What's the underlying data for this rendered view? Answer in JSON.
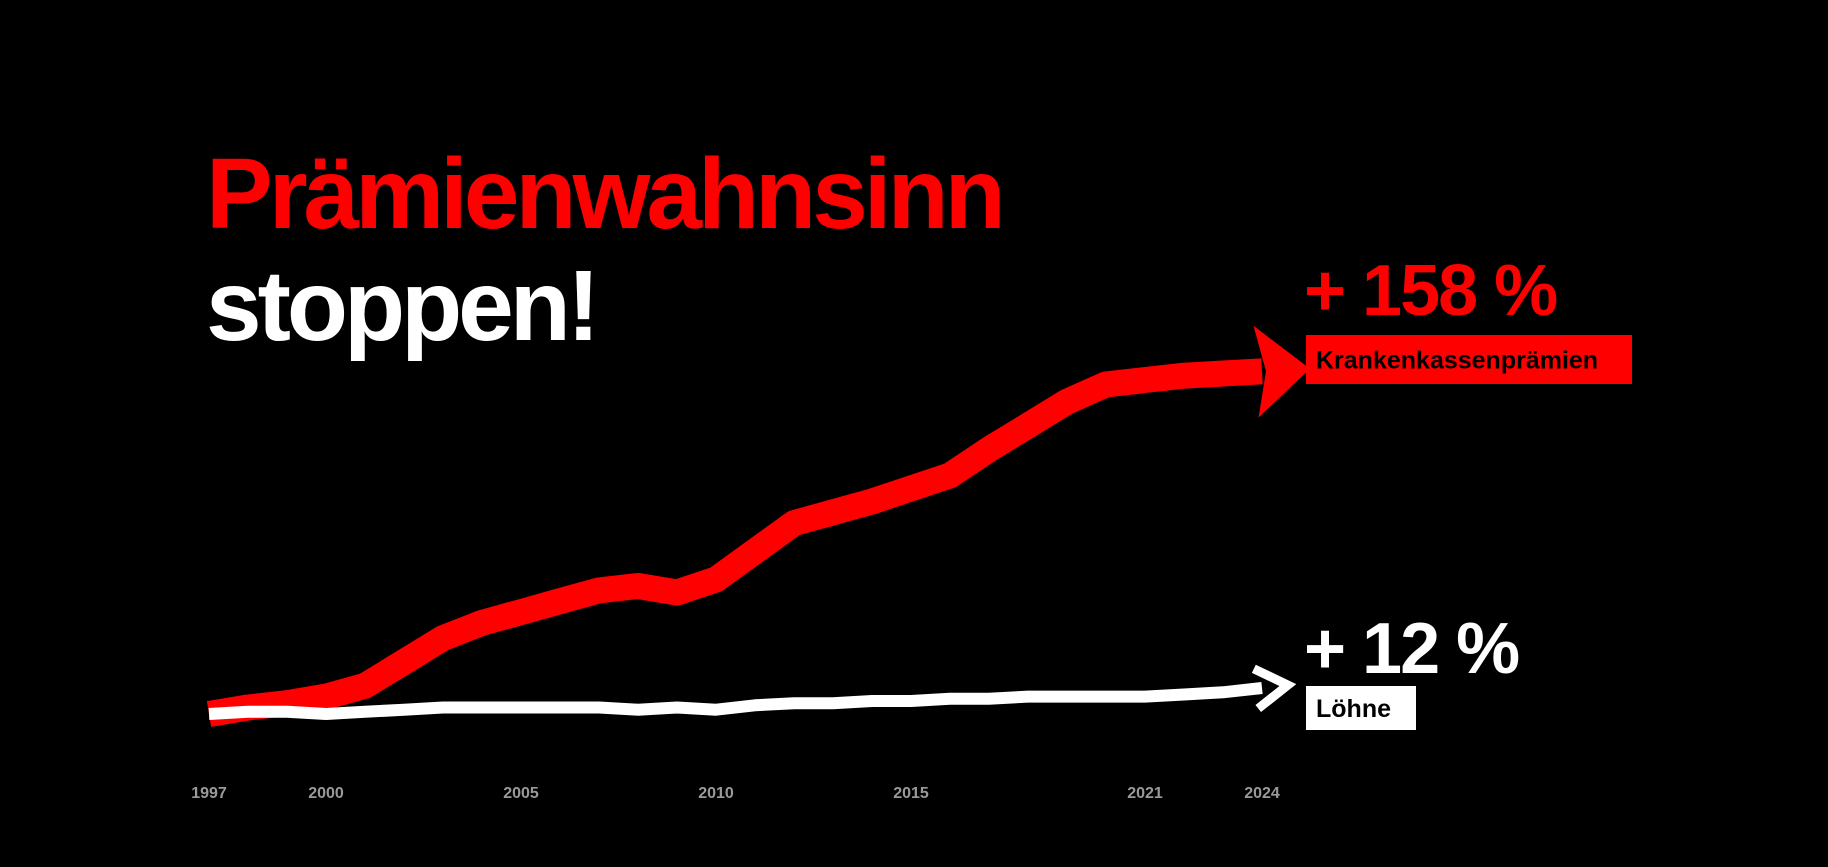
{
  "chart_data": {
    "type": "line",
    "title": "Prämienwahnsinn",
    "subtitle": "stoppen!",
    "x": [
      1997,
      1998,
      1999,
      2000,
      2001,
      2002,
      2003,
      2004,
      2005,
      2006,
      2007,
      2008,
      2009,
      2010,
      2011,
      2012,
      2013,
      2014,
      2015,
      2016,
      2017,
      2018,
      2019,
      2020,
      2021,
      2022,
      2023,
      2024
    ],
    "xlim": [
      1997,
      2024
    ],
    "xticks": [
      1997,
      2000,
      2005,
      2010,
      2015,
      2021,
      2024
    ],
    "ylim": [
      0,
      160
    ],
    "series": [
      {
        "name": "Krankenkassenprämien",
        "color": "#ff0000",
        "end_label": "+ 158 %",
        "values": [
          0,
          3,
          5,
          8,
          13,
          24,
          35,
          42,
          47,
          52,
          57,
          59,
          56,
          62,
          75,
          88,
          93,
          98,
          104,
          110,
          122,
          133,
          144,
          152,
          154,
          156,
          157,
          158
        ]
      },
      {
        "name": "Löhne",
        "color": "#ffffff",
        "end_label": "+ 12 %",
        "values": [
          0,
          1,
          1,
          0,
          1,
          2,
          3,
          3,
          3,
          3,
          3,
          2,
          3,
          2,
          4,
          5,
          5,
          6,
          6,
          7,
          7,
          8,
          8,
          8,
          8,
          9,
          10,
          12
        ]
      }
    ]
  }
}
